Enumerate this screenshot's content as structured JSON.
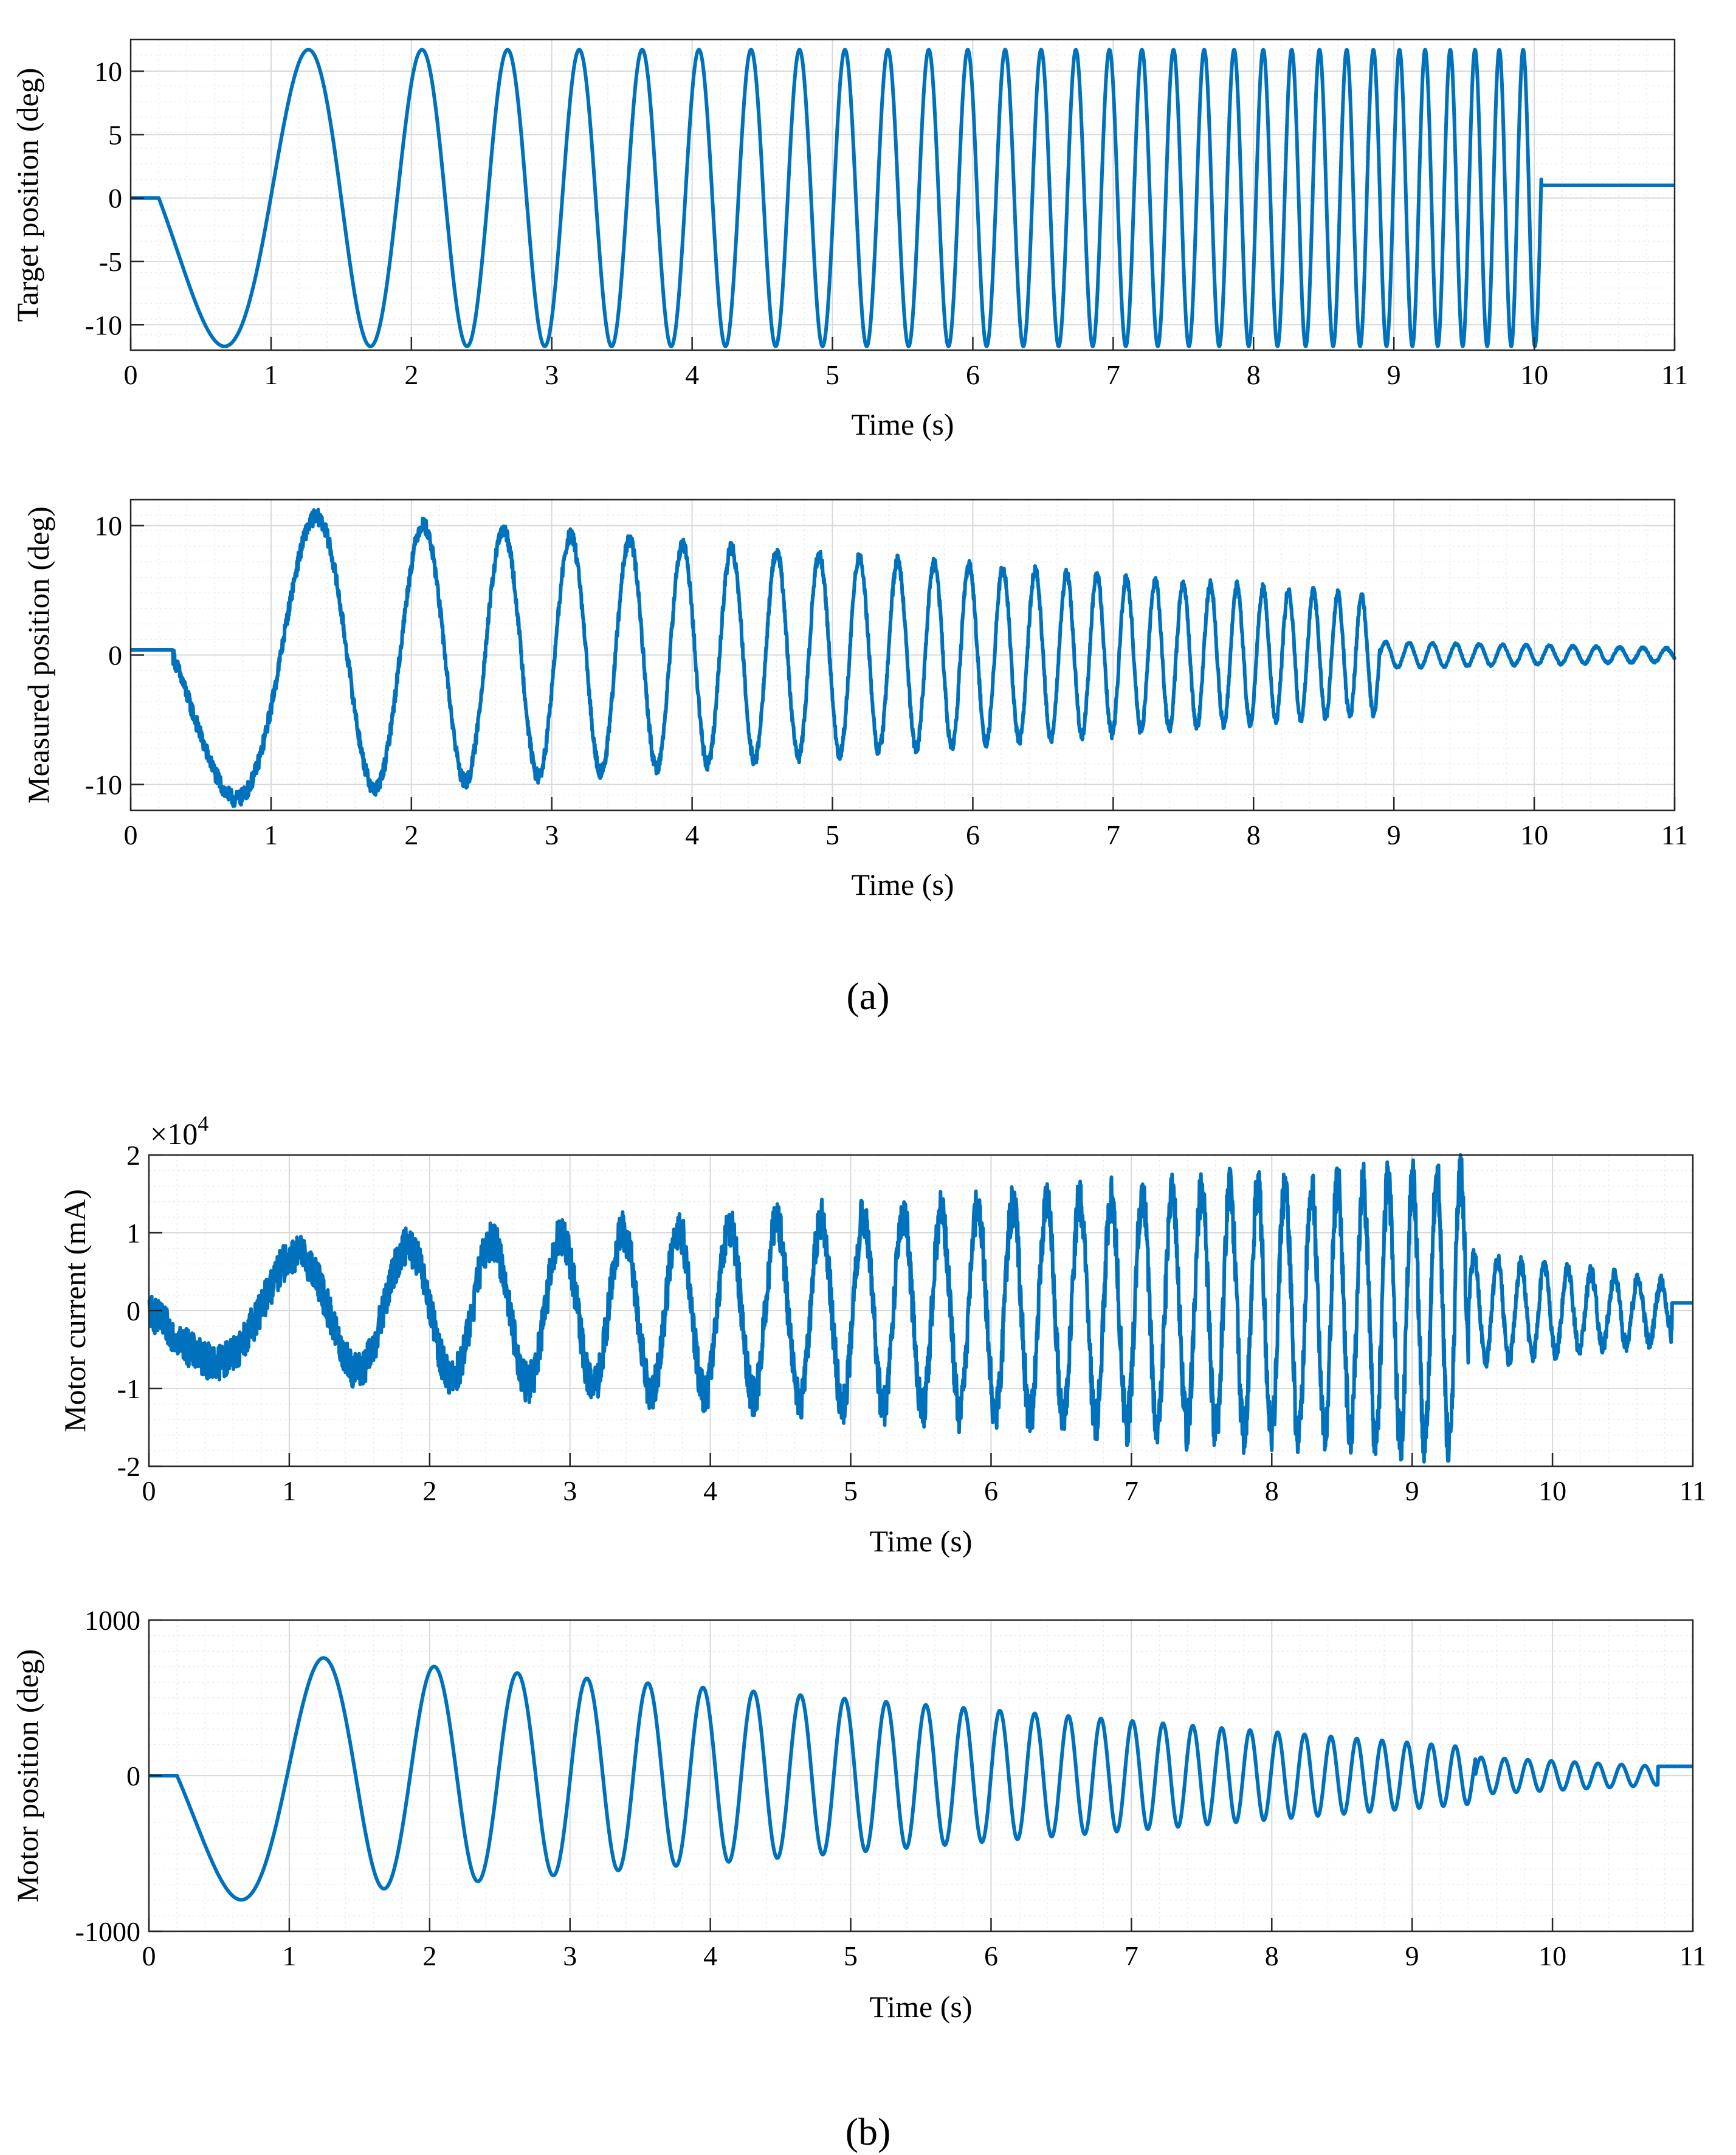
{
  "figure": {
    "label_a": "(a)",
    "label_b": "(b)",
    "line_color": "#0072BD",
    "grid_color": "#d9d9d9",
    "minor_grid_color": "#ececec"
  },
  "chart_data": [
    {
      "id": "target",
      "type": "line",
      "title": "",
      "xlabel": "Time (s)",
      "ylabel": "Target position (deg)",
      "xlim": [
        0,
        11
      ],
      "ylim": [
        -12,
        12.5
      ],
      "xticks": [
        "0",
        "1",
        "2",
        "3",
        "4",
        "5",
        "6",
        "7",
        "8",
        "9",
        "10",
        "11"
      ],
      "yticks": [
        {
          "v": 10,
          "t": "10"
        },
        {
          "v": 5,
          "t": "5"
        },
        {
          "v": 0,
          "t": "0"
        },
        {
          "v": -5,
          "t": "-5"
        },
        {
          "v": -10,
          "t": "-10"
        }
      ],
      "series": [
        {
          "name": "Target position",
          "model": "chirp",
          "amplitude": [
            11.7,
            11.7
          ],
          "f0": 0.4,
          "f1": 6.0,
          "t_start": 0.2,
          "t_end": 10.05,
          "hold_after": 1.0,
          "noise": 0
        }
      ]
    },
    {
      "id": "measured",
      "type": "line",
      "title": "",
      "xlabel": "Time (s)",
      "ylabel": "Measured position (deg)",
      "xlim": [
        0,
        11
      ],
      "ylim": [
        -12,
        12
      ],
      "xticks": [
        "0",
        "1",
        "2",
        "3",
        "4",
        "5",
        "6",
        "7",
        "8",
        "9",
        "10",
        "11"
      ],
      "yticks": [
        {
          "v": 10,
          "t": "10"
        },
        {
          "v": 0,
          "t": "0"
        },
        {
          "v": -10,
          "t": "-10"
        }
      ],
      "series": [
        {
          "name": "Measured position",
          "model": "chirp",
          "amplitude": [
            11.5,
            4.5
          ],
          "f0": 0.4,
          "f1": 6.0,
          "t_start": 0.3,
          "t_end": 8.9,
          "tail_amplitude": 1.0,
          "tail_end": 11.0,
          "hold_after": 0.0,
          "noise": 0.45,
          "offset": 0.4
        }
      ]
    },
    {
      "id": "current",
      "type": "line",
      "title": "",
      "xlabel": "Time (s)",
      "ylabel": "Motor current (mA)",
      "exponent_label": "×10",
      "exponent_power": "4",
      "xlim": [
        0,
        11
      ],
      "ylim": [
        -2,
        2
      ],
      "xticks": [
        "0",
        "1",
        "2",
        "3",
        "4",
        "5",
        "6",
        "7",
        "8",
        "9",
        "10",
        "11"
      ],
      "yticks": [
        {
          "v": 2,
          "t": "2"
        },
        {
          "v": 1,
          "t": "1"
        },
        {
          "v": 0,
          "t": "0"
        },
        {
          "v": -1,
          "t": "-1"
        },
        {
          "v": -2,
          "t": "-2"
        }
      ],
      "series": [
        {
          "name": "Motor current (×10^4 mA)",
          "model": "chirp",
          "amplitude": [
            0.6,
            1.75
          ],
          "f0": 0.4,
          "f1": 6.0,
          "t_start": 0.0,
          "t_end": 9.4,
          "tail_amplitude": 0.7,
          "tail_end": 10.85,
          "hold_after": 0.1,
          "noise": 0.65
        }
      ]
    },
    {
      "id": "motorpos",
      "type": "line",
      "title": "",
      "xlabel": "Time (s)",
      "ylabel": "Motor position (deg)",
      "xlim": [
        0,
        11
      ],
      "ylim": [
        -1000,
        1000
      ],
      "xticks": [
        "0",
        "1",
        "2",
        "3",
        "4",
        "5",
        "6",
        "7",
        "8",
        "9",
        "10",
        "11"
      ],
      "yticks": [
        {
          "v": 1000,
          "t": "1000"
        },
        {
          "v": 0,
          "t": "0"
        },
        {
          "v": -1000,
          "t": "-1000"
        }
      ],
      "series": [
        {
          "name": "Motor position",
          "model": "chirp",
          "amplitude": [
            830,
            180
          ],
          "f0": 0.4,
          "f1": 6.0,
          "t_start": 0.2,
          "t_end": 9.45,
          "tail_amplitude": 120,
          "tail_end": 10.75,
          "hold_after": 60,
          "noise": 0
        }
      ]
    }
  ]
}
